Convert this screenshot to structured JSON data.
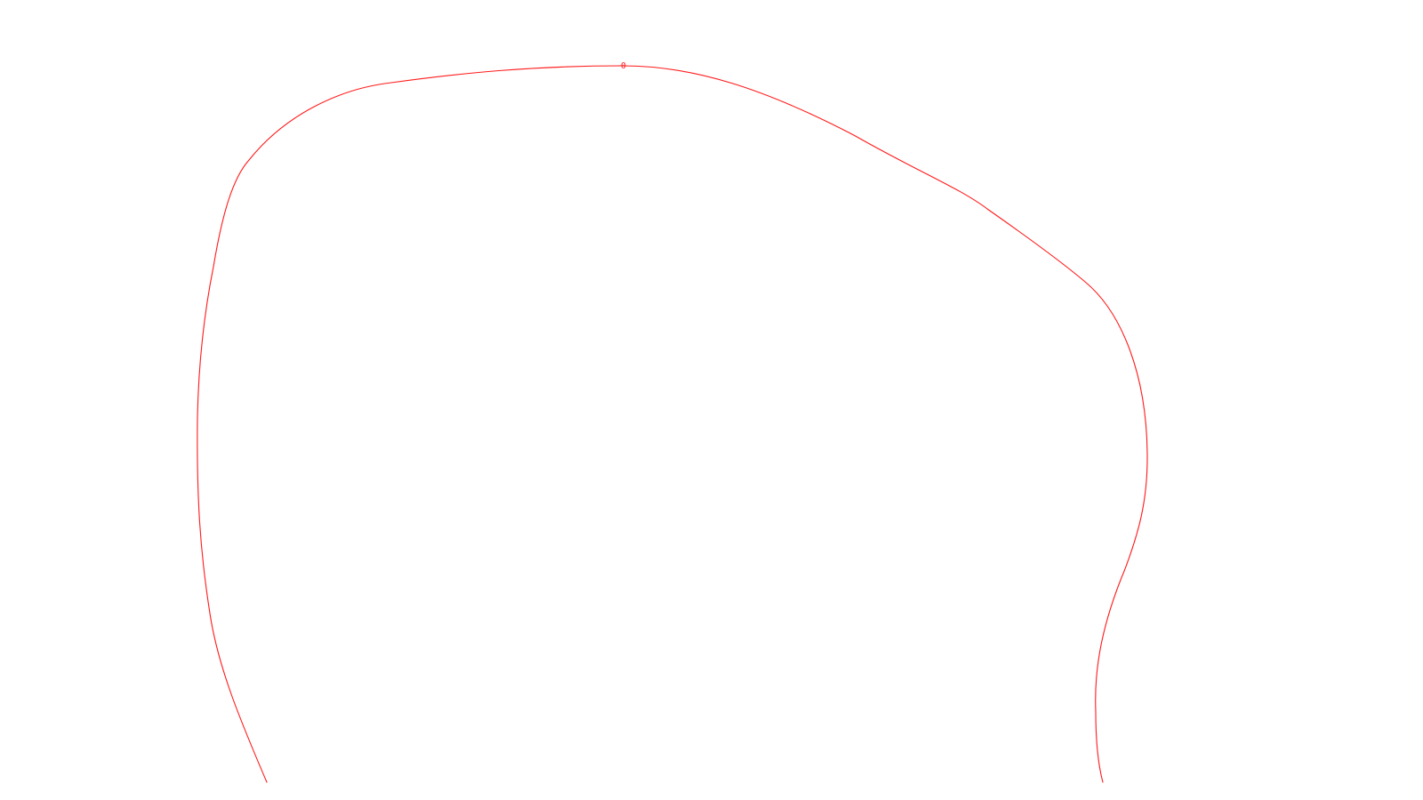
{
  "stroke_color": "#ff1a1a",
  "node_label": "0"
}
